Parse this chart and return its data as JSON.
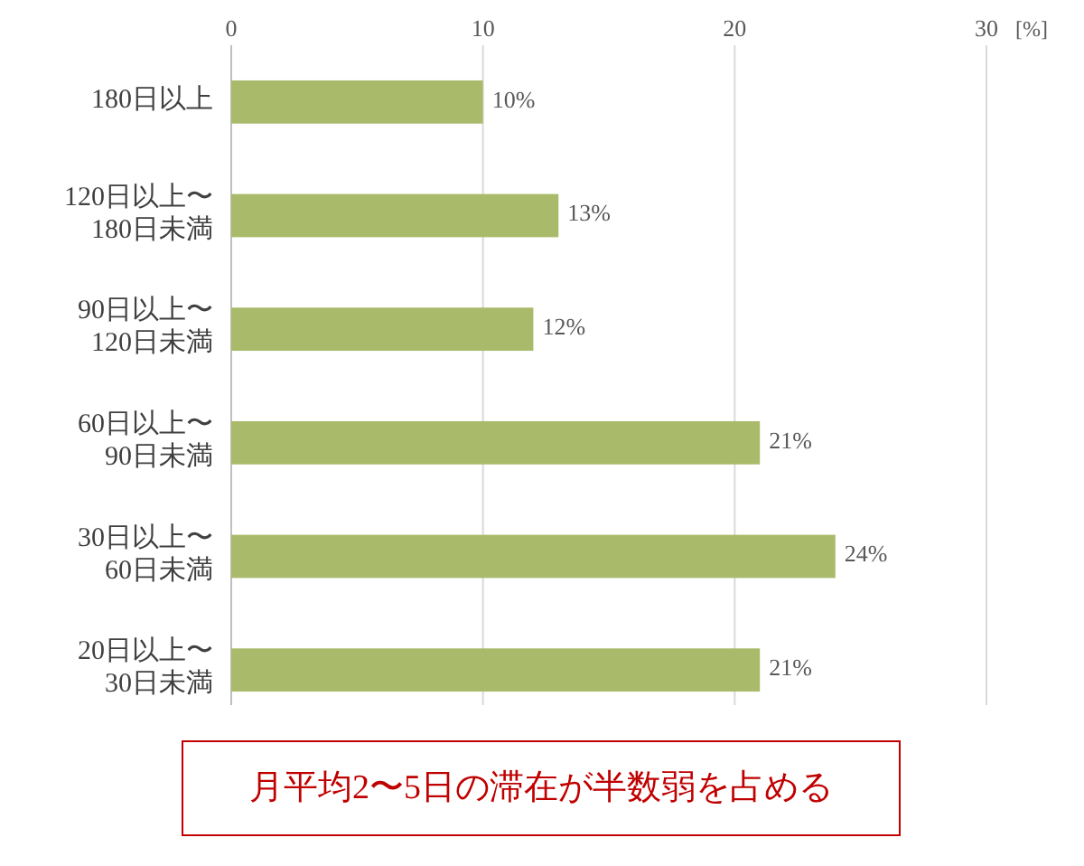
{
  "chart_data": {
    "type": "bar",
    "orientation": "horizontal",
    "xlabel": "[%]",
    "categories": [
      "180日以上",
      "120日以上〜\n180日未満",
      "90日以上〜\n120日未満",
      "60日以上〜\n90日未満",
      "30日以上〜\n60日未満",
      "20日以上〜\n30日未満"
    ],
    "values": [
      10,
      13,
      12,
      21,
      24,
      21
    ],
    "value_labels": [
      "10%",
      "13%",
      "12%",
      "21%",
      "24%",
      "21%"
    ],
    "color": "#a9bb6a",
    "xlim": [
      0,
      30
    ],
    "xticks": [
      0,
      10,
      20,
      30
    ],
    "grid": "x",
    "annotations": [
      "月平均2〜5日の滞在が半数弱を占める"
    ]
  }
}
